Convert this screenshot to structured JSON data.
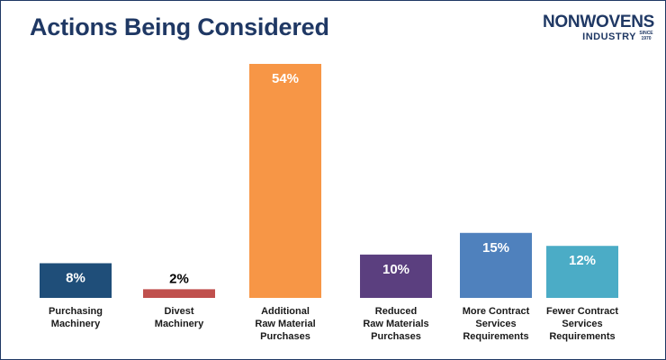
{
  "chart_data": {
    "type": "bar",
    "title": "Actions Being Considered",
    "categories": [
      [
        "Purchasing",
        "Machinery"
      ],
      [
        "Divest",
        "Machinery"
      ],
      [
        "Additional",
        "Raw Material",
        "Purchases"
      ],
      [
        "Reduced",
        "Raw Materials",
        "Purchases"
      ],
      [
        "More Contract",
        "Services",
        "Requirements"
      ],
      [
        "Fewer Contract",
        "Services",
        "Requirements"
      ]
    ],
    "values": [
      8,
      2,
      54,
      10,
      15,
      12
    ],
    "value_labels": [
      "8%",
      "2%",
      "54%",
      "10%",
      "15%",
      "12%"
    ],
    "colors": [
      "#1f4e79",
      "#c0504d",
      "#f79646",
      "#5b3f7f",
      "#4f81bd",
      "#4bacc6"
    ],
    "label_colors": [
      "#ffffff",
      "#000000",
      "#ffffff",
      "#ffffff",
      "#ffffff",
      "#ffffff"
    ],
    "ylim": [
      0,
      54
    ],
    "xlabel": "",
    "ylabel": ""
  },
  "logo": {
    "line1": "NONWOVENS",
    "line2": "INDUSTRY",
    "since": "SINCE 1970"
  }
}
